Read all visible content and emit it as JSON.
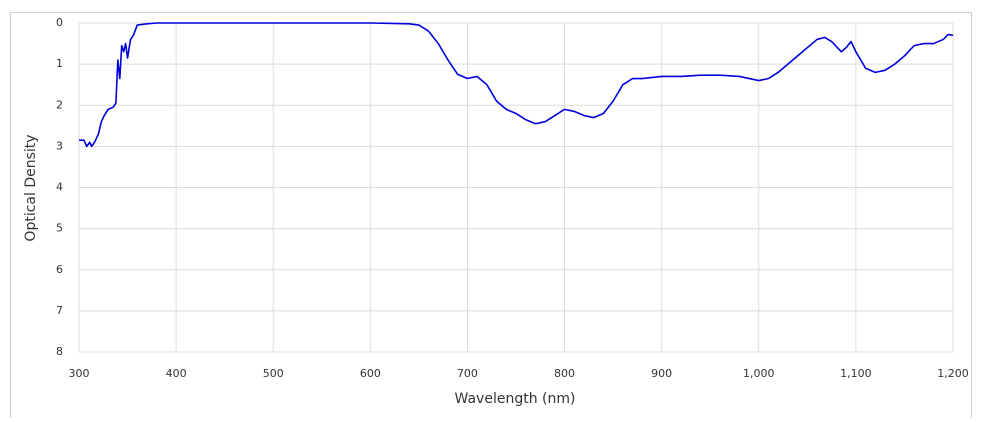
{
  "chart_data": {
    "type": "line",
    "x_label": "Wavelength (nm)",
    "y_label": "Optical Density",
    "x": [
      300,
      305,
      308,
      311,
      313,
      316,
      320,
      323,
      326,
      330,
      335,
      338,
      340,
      342,
      344,
      346,
      348,
      350,
      353,
      356,
      360,
      370,
      380,
      400,
      450,
      500,
      550,
      600,
      640,
      650,
      660,
      670,
      680,
      690,
      700,
      710,
      720,
      730,
      740,
      750,
      760,
      770,
      780,
      790,
      800,
      810,
      820,
      830,
      840,
      850,
      860,
      870,
      880,
      900,
      920,
      940,
      960,
      980,
      1000,
      1010,
      1020,
      1040,
      1060,
      1068,
      1075,
      1085,
      1090,
      1095,
      1100,
      1110,
      1120,
      1130,
      1140,
      1150,
      1160,
      1170,
      1180,
      1190,
      1195,
      1200
    ],
    "values": [
      2.85,
      2.85,
      3.0,
      2.9,
      3.0,
      2.9,
      2.7,
      2.4,
      2.25,
      2.1,
      2.05,
      1.95,
      0.9,
      1.35,
      0.55,
      0.7,
      0.5,
      0.85,
      0.4,
      0.3,
      0.05,
      0.02,
      0.0,
      0.0,
      0.0,
      0.0,
      0.0,
      0.0,
      0.02,
      0.05,
      0.2,
      0.5,
      0.9,
      1.25,
      1.35,
      1.3,
      1.5,
      1.9,
      2.1,
      2.2,
      2.35,
      2.45,
      2.4,
      2.25,
      2.1,
      2.15,
      2.25,
      2.3,
      2.2,
      1.9,
      1.5,
      1.35,
      1.35,
      1.3,
      1.3,
      1.27,
      1.27,
      1.3,
      1.4,
      1.35,
      1.2,
      0.8,
      0.4,
      0.35,
      0.45,
      0.7,
      0.6,
      0.45,
      0.7,
      1.1,
      1.2,
      1.15,
      1.0,
      0.8,
      0.55,
      0.5,
      0.5,
      0.4,
      0.28,
      0.3
    ],
    "color": "#0000dd",
    "xlim": [
      300,
      1200
    ],
    "xticks": [
      300,
      400,
      500,
      600,
      700,
      800,
      900,
      {
        "value": 1000,
        "label": "1,000"
      },
      {
        "value": 1100,
        "label": "1,100"
      },
      {
        "value": 1200,
        "label": "1,200"
      }
    ],
    "ylim": [
      0,
      8
    ],
    "yticks": [
      0,
      1,
      2,
      3,
      4,
      5,
      6,
      7,
      8
    ],
    "y_reversed": true,
    "grid": true
  }
}
